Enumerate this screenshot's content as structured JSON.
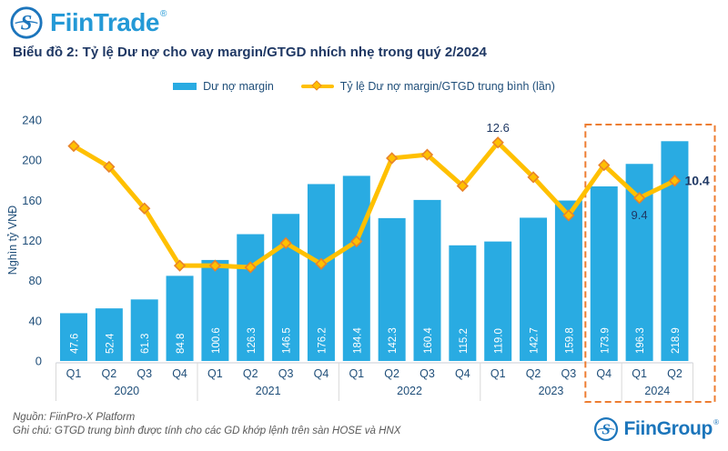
{
  "header": {
    "brand": "FiinTrade",
    "brand_registered": "®",
    "title": "Biểu đồ 2: Tỷ lệ Dư nợ cho vay margin/GTGD nhích nhẹ trong quý 2/2024"
  },
  "legend": {
    "bar_label": "Dư nợ margin",
    "line_label": "Tỷ lệ Dư nợ margin/GTGD trung bình (lần)"
  },
  "colors": {
    "bar": "#29ABE2",
    "line": "#FFC000",
    "marker_border": "#E8832A",
    "highlight_box": "#ED7D31",
    "title_text": "#1F3864",
    "axis_text": "#1F4E79",
    "footer_text": "#595959",
    "fiintrade_brand": "#2499D6",
    "fiingroup_brand": "#1B75BB"
  },
  "chart_data": {
    "type": "bar",
    "overlay": "line",
    "title": "Biểu đồ 2: Tỷ lệ Dư nợ cho vay margin/GTGD nhích nhẹ trong quý 2/2024",
    "xlabel": "",
    "ylabel": "Nghìn tỷ VNĐ",
    "yticks": [
      0,
      40,
      80,
      120,
      160,
      200,
      240
    ],
    "ylim": [
      0,
      240
    ],
    "y2lim": [
      0,
      13.9
    ],
    "grid": false,
    "legend_position": "top-center",
    "categories": [
      "Q1 2020",
      "Q2 2020",
      "Q3 2020",
      "Q4 2020",
      "Q1 2021",
      "Q2 2021",
      "Q3 2021",
      "Q4 2021",
      "Q1 2022",
      "Q2 2022",
      "Q3 2022",
      "Q4 2022",
      "Q1 2023",
      "Q2 2023",
      "Q3 2023",
      "Q4 2023",
      "Q1 2024",
      "Q2 2024"
    ],
    "years": [
      {
        "label": "2020",
        "quarters": [
          "Q1",
          "Q2",
          "Q3",
          "Q4"
        ]
      },
      {
        "label": "2021",
        "quarters": [
          "Q1",
          "Q2",
          "Q3",
          "Q4"
        ]
      },
      {
        "label": "2022",
        "quarters": [
          "Q1",
          "Q2",
          "Q3",
          "Q4"
        ]
      },
      {
        "label": "2023",
        "quarters": [
          "Q1",
          "Q2",
          "Q3",
          "Q4"
        ]
      },
      {
        "label": "2024",
        "quarters": [
          "Q1",
          "Q2"
        ]
      }
    ],
    "bar_series": {
      "name": "Dư nợ margin",
      "unit": "Nghìn tỷ VNĐ",
      "values": [
        47.6,
        52.4,
        61.3,
        84.8,
        100.6,
        126.3,
        146.5,
        176.2,
        184.4,
        142.3,
        160.4,
        115.2,
        119.0,
        142.7,
        159.8,
        173.9,
        196.3,
        218.9
      ]
    },
    "line_series": {
      "name": "Tỷ lệ Dư nợ margin/GTGD trung bình (lần)",
      "values": [
        12.4,
        11.2,
        8.8,
        5.5,
        5.5,
        5.4,
        6.8,
        5.6,
        6.9,
        11.7,
        11.9,
        10.1,
        12.6,
        10.6,
        8.4,
        11.3,
        9.4,
        10.4
      ],
      "values_note": "only 12.6, 9.4 and 10.4 are labeled on chart; other points estimated from plot",
      "data_labels": [
        {
          "index": 12,
          "text": "12.6",
          "position": "above",
          "bold": false
        },
        {
          "index": 16,
          "text": "9.4",
          "position": "below",
          "bold": false
        },
        {
          "index": 17,
          "text": "10.4",
          "position": "right",
          "bold": true
        }
      ]
    },
    "highlight_box": {
      "from": "Q4 2023",
      "to": "Q2 2024",
      "from_index": 15,
      "to_index": 17
    }
  },
  "footer": {
    "source": "Nguồn: FiinPro-X Platform",
    "note": "Ghi chú: GTGD trung bình được tính cho các GD khớp lệnh trên sàn HOSE và HNX",
    "brand": "FiinGroup",
    "brand_registered": "®"
  }
}
